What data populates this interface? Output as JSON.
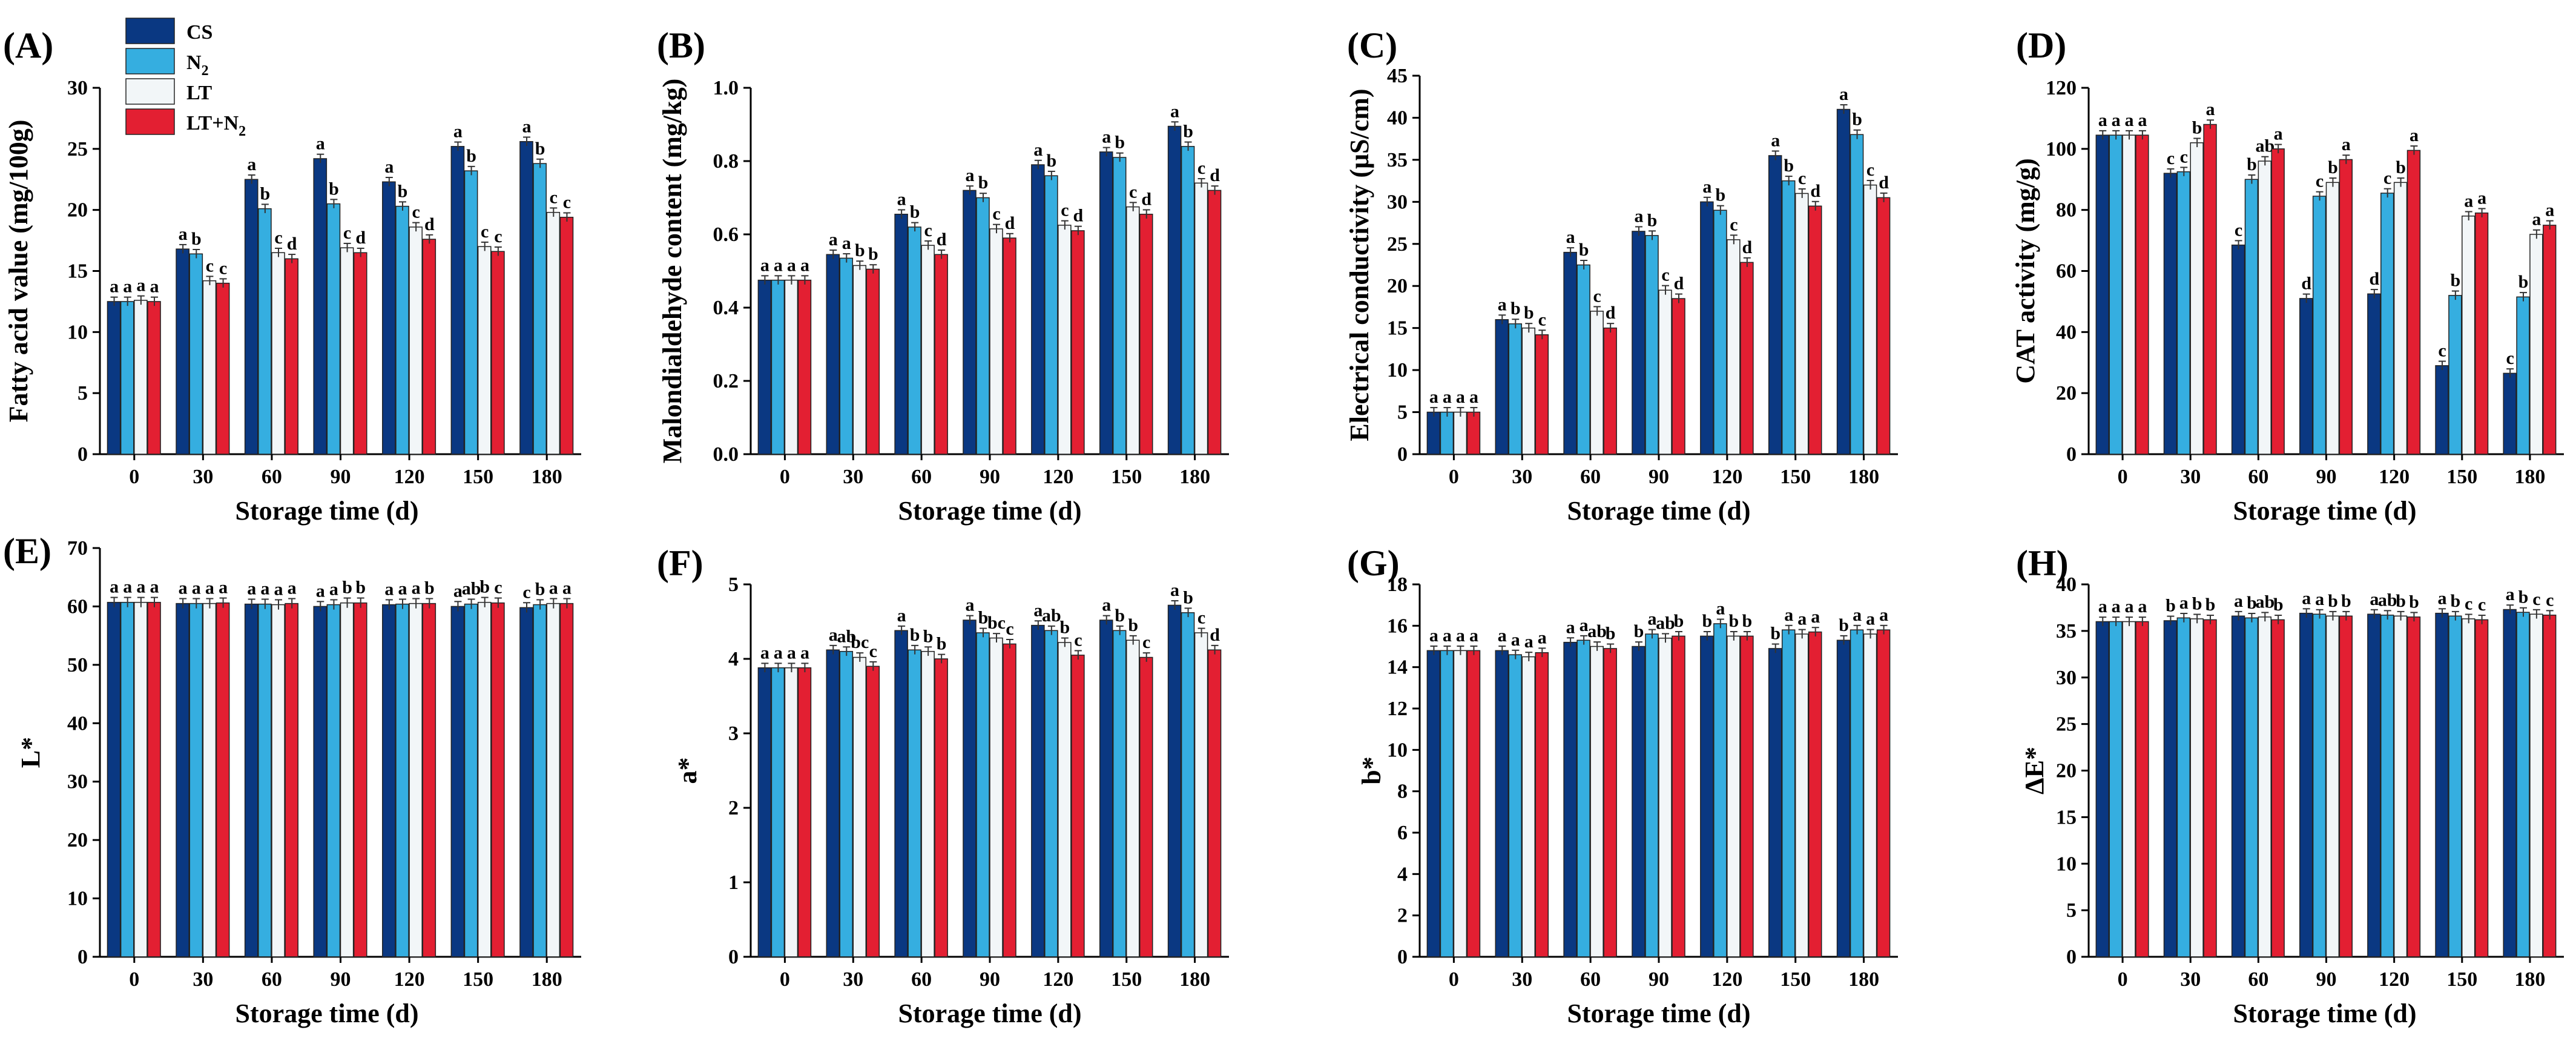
{
  "figure": {
    "series": [
      {
        "name": "CS",
        "color": "#0a3882"
      },
      {
        "name": "N2",
        "color": "#35aee0"
      },
      {
        "name": "LT",
        "color": "#f2f6f8"
      },
      {
        "name": "LT+N2",
        "color": "#e31f32"
      }
    ],
    "legend_labels": [
      "CS",
      "N",
      "LT",
      "LT+N"
    ],
    "legend_subscript": "2",
    "legend_placement": "top-left of panel A"
  },
  "chart_data": [
    {
      "type": "bar",
      "panel": "(A)",
      "title": "",
      "xlabel": "Storage time (d)",
      "ylabel": "Fatty acid value (mg/100g)",
      "categories": [
        "0",
        "30",
        "60",
        "90",
        "120",
        "150",
        "180"
      ],
      "ylim": [
        0,
        30
      ],
      "yticks": [
        "0",
        "5",
        "10",
        "15",
        "20",
        "25",
        "30"
      ],
      "series": [
        {
          "name": "CS",
          "values": [
            12.5,
            16.8,
            22.5,
            24.2,
            22.3,
            25.2,
            25.6
          ],
          "sig": [
            "a",
            "a",
            "a",
            "a",
            "a",
            "a",
            "a"
          ]
        },
        {
          "name": "N2",
          "values": [
            12.5,
            16.4,
            20.1,
            20.5,
            20.3,
            23.2,
            23.8
          ],
          "sig": [
            "a",
            "b",
            "b",
            "b",
            "b",
            "b",
            "b"
          ]
        },
        {
          "name": "LT",
          "values": [
            12.6,
            14.2,
            16.5,
            16.9,
            18.6,
            17.0,
            19.8
          ],
          "sig": [
            "a",
            "c",
            "c",
            "c",
            "c",
            "c",
            "c"
          ]
        },
        {
          "name": "LT+N2",
          "values": [
            12.5,
            14.0,
            16.0,
            16.5,
            17.6,
            16.6,
            19.4
          ],
          "sig": [
            "a",
            "c",
            "d",
            "d",
            "d",
            "c",
            "c"
          ]
        }
      ]
    },
    {
      "type": "bar",
      "panel": "(B)",
      "title": "",
      "xlabel": "Storage time (d)",
      "ylabel": "Malondialdehyde content (mg/kg)",
      "categories": [
        "0",
        "30",
        "60",
        "90",
        "120",
        "150",
        "180"
      ],
      "ylim": [
        0,
        1.0
      ],
      "yticks": [
        "0.0",
        "0.2",
        "0.4",
        "0.6",
        "0.8",
        "1.0"
      ],
      "series": [
        {
          "name": "CS",
          "values": [
            0.475,
            0.545,
            0.655,
            0.72,
            0.79,
            0.825,
            0.895
          ],
          "sig": [
            "a",
            "a",
            "a",
            "a",
            "a",
            "a",
            "a"
          ]
        },
        {
          "name": "N2",
          "values": [
            0.475,
            0.535,
            0.62,
            0.7,
            0.76,
            0.81,
            0.84
          ],
          "sig": [
            "a",
            "a",
            "b",
            "b",
            "b",
            "b",
            "b"
          ]
        },
        {
          "name": "LT",
          "values": [
            0.475,
            0.515,
            0.57,
            0.615,
            0.625,
            0.675,
            0.74
          ],
          "sig": [
            "a",
            "b",
            "c",
            "c",
            "c",
            "c",
            "c"
          ]
        },
        {
          "name": "LT+N2",
          "values": [
            0.475,
            0.505,
            0.545,
            0.59,
            0.61,
            0.655,
            0.72
          ],
          "sig": [
            "a",
            "b",
            "d",
            "d",
            "d",
            "d",
            "d"
          ]
        }
      ]
    },
    {
      "type": "bar",
      "panel": "(C)",
      "title": "",
      "xlabel": "Storage time (d)",
      "ylabel": "Electrical conductivity (μS/cm)",
      "categories": [
        "0",
        "30",
        "60",
        "90",
        "120",
        "150",
        "180"
      ],
      "ylim": [
        0,
        45
      ],
      "yticks": [
        "0",
        "5",
        "10",
        "15",
        "20",
        "25",
        "30",
        "35",
        "40",
        "45"
      ],
      "series": [
        {
          "name": "CS",
          "values": [
            5.0,
            16.0,
            24.0,
            26.5,
            30.0,
            35.5,
            41.0
          ],
          "sig": [
            "a",
            "a",
            "a",
            "a",
            "a",
            "a",
            "a"
          ]
        },
        {
          "name": "N2",
          "values": [
            5.0,
            15.5,
            22.5,
            26.0,
            29.0,
            32.5,
            38.0
          ],
          "sig": [
            "a",
            "b",
            "b",
            "b",
            "b",
            "b",
            "b"
          ]
        },
        {
          "name": "LT",
          "values": [
            5.0,
            15.0,
            17.0,
            19.5,
            25.5,
            31.0,
            32.0
          ],
          "sig": [
            "a",
            "b",
            "c",
            "c",
            "c",
            "c",
            "c"
          ]
        },
        {
          "name": "LT+N2",
          "values": [
            5.0,
            14.2,
            15.0,
            18.5,
            22.8,
            29.5,
            30.5
          ],
          "sig": [
            "a",
            "c",
            "d",
            "d",
            "d",
            "d",
            "d"
          ]
        }
      ]
    },
    {
      "type": "bar",
      "panel": "(D)",
      "title": "",
      "xlabel": "Storage time (d)",
      "ylabel": "CAT activity (mg/g)",
      "categories": [
        "0",
        "30",
        "60",
        "90",
        "120",
        "150",
        "180"
      ],
      "ylim": [
        0,
        120
      ],
      "yticks": [
        "0",
        "20",
        "40",
        "60",
        "80",
        "100",
        "120"
      ],
      "series": [
        {
          "name": "CS",
          "values": [
            104.5,
            92.0,
            68.5,
            51.0,
            52.5,
            29.0,
            26.5
          ],
          "sig": [
            "a",
            "c",
            "c",
            "d",
            "d",
            "c",
            "c"
          ]
        },
        {
          "name": "N2",
          "values": [
            104.5,
            92.5,
            90.0,
            84.5,
            85.5,
            52.0,
            51.5
          ],
          "sig": [
            "a",
            "c",
            "b",
            "c",
            "c",
            "b",
            "b"
          ]
        },
        {
          "name": "LT",
          "values": [
            104.5,
            102.0,
            96.0,
            89.0,
            89.0,
            78.0,
            72.0
          ],
          "sig": [
            "a",
            "b",
            "ab",
            "b",
            "b",
            "a",
            "a"
          ]
        },
        {
          "name": "LT+N2",
          "values": [
            104.5,
            108.0,
            100.0,
            96.5,
            99.5,
            79.0,
            75.0
          ],
          "sig": [
            "a",
            "a",
            "a",
            "a",
            "a",
            "a",
            "a"
          ]
        }
      ]
    },
    {
      "type": "bar",
      "panel": "(E)",
      "title": "",
      "xlabel": "Storage time (d)",
      "ylabel": "L*",
      "categories": [
        "0",
        "30",
        "60",
        "90",
        "120",
        "150",
        "180"
      ],
      "ylim": [
        0,
        70
      ],
      "yticks": [
        "0",
        "10",
        "20",
        "30",
        "40",
        "50",
        "60",
        "70"
      ],
      "series": [
        {
          "name": "CS",
          "values": [
            60.7,
            60.5,
            60.4,
            60.0,
            60.3,
            60.0,
            59.8
          ],
          "sig": [
            "a",
            "a",
            "a",
            "a",
            "a",
            "a",
            "c"
          ]
        },
        {
          "name": "N2",
          "values": [
            60.7,
            60.5,
            60.4,
            60.3,
            60.4,
            60.4,
            60.3
          ],
          "sig": [
            "a",
            "a",
            "a",
            "a",
            "a",
            "ab",
            "b"
          ]
        },
        {
          "name": "LT",
          "values": [
            60.7,
            60.5,
            60.3,
            60.6,
            60.5,
            60.7,
            60.5
          ],
          "sig": [
            "a",
            "a",
            "a",
            "b",
            "a",
            "b",
            "a"
          ]
        },
        {
          "name": "LT+N2",
          "values": [
            60.7,
            60.6,
            60.5,
            60.6,
            60.5,
            60.6,
            60.5
          ],
          "sig": [
            "a",
            "a",
            "a",
            "b",
            "b",
            "c",
            "a"
          ]
        }
      ]
    },
    {
      "type": "bar",
      "panel": "(F)",
      "title": "",
      "xlabel": "Storage time (d)",
      "ylabel": "a*",
      "categories": [
        "0",
        "30",
        "60",
        "90",
        "120",
        "150",
        "180"
      ],
      "ylim": [
        0,
        5
      ],
      "yticks": [
        "0",
        "1",
        "2",
        "3",
        "4",
        "5"
      ],
      "series": [
        {
          "name": "CS",
          "values": [
            3.88,
            4.12,
            4.38,
            4.52,
            4.45,
            4.52,
            4.72
          ],
          "sig": [
            "a",
            "a",
            "a",
            "a",
            "a",
            "a",
            "a"
          ]
        },
        {
          "name": "N2",
          "values": [
            3.88,
            4.1,
            4.12,
            4.35,
            4.38,
            4.38,
            4.62
          ],
          "sig": [
            "a",
            "ab",
            "b",
            "b",
            "ab",
            "b",
            "b"
          ]
        },
        {
          "name": "LT",
          "values": [
            3.88,
            4.02,
            4.1,
            4.28,
            4.22,
            4.25,
            4.35
          ],
          "sig": [
            "a",
            "bc",
            "b",
            "bc",
            "b",
            "b",
            "c"
          ]
        },
        {
          "name": "LT+N2",
          "values": [
            3.88,
            3.9,
            4.0,
            4.2,
            4.05,
            4.02,
            4.12
          ],
          "sig": [
            "a",
            "c",
            "b",
            "c",
            "c",
            "c",
            "d"
          ]
        }
      ]
    },
    {
      "type": "bar",
      "panel": "(G)",
      "title": "",
      "xlabel": "Storage time (d)",
      "ylabel": "b*",
      "categories": [
        "0",
        "30",
        "60",
        "90",
        "120",
        "150",
        "180"
      ],
      "ylim": [
        0,
        18
      ],
      "yticks": [
        "0",
        "2",
        "4",
        "6",
        "8",
        "10",
        "12",
        "14",
        "16",
        "18"
      ],
      "series": [
        {
          "name": "CS",
          "values": [
            14.8,
            14.8,
            15.2,
            15.0,
            15.5,
            14.9,
            15.3
          ],
          "sig": [
            "a",
            "a",
            "a",
            "b",
            "b",
            "b",
            "b"
          ]
        },
        {
          "name": "N2",
          "values": [
            14.8,
            14.6,
            15.3,
            15.6,
            16.1,
            15.8,
            15.8
          ],
          "sig": [
            "a",
            "a",
            "a",
            "a",
            "a",
            "a",
            "a"
          ]
        },
        {
          "name": "LT",
          "values": [
            14.8,
            14.5,
            15.0,
            15.4,
            15.5,
            15.6,
            15.6
          ],
          "sig": [
            "a",
            "a",
            "ab",
            "ab",
            "b",
            "a",
            "a"
          ]
        },
        {
          "name": "LT+N2",
          "values": [
            14.8,
            14.7,
            14.9,
            15.5,
            15.5,
            15.7,
            15.8
          ],
          "sig": [
            "a",
            "a",
            "b",
            "b",
            "b",
            "a",
            "a"
          ]
        }
      ]
    },
    {
      "type": "bar",
      "panel": "(H)",
      "title": "",
      "xlabel": "Storage time (d)",
      "ylabel": "ΔE*",
      "categories": [
        "0",
        "30",
        "60",
        "90",
        "120",
        "150",
        "180"
      ],
      "ylim": [
        0,
        40
      ],
      "yticks": [
        "0",
        "5",
        "10",
        "15",
        "20",
        "25",
        "30",
        "35",
        "40"
      ],
      "series": [
        {
          "name": "CS",
          "values": [
            36.0,
            36.1,
            36.6,
            36.9,
            36.8,
            36.9,
            37.3
          ],
          "sig": [
            "a",
            "b",
            "a",
            "a",
            "a",
            "a",
            "a"
          ]
        },
        {
          "name": "N2",
          "values": [
            36.0,
            36.4,
            36.4,
            36.8,
            36.7,
            36.6,
            37.0
          ],
          "sig": [
            "a",
            "a",
            "b",
            "a",
            "ab",
            "b",
            "b"
          ]
        },
        {
          "name": "LT",
          "values": [
            36.0,
            36.3,
            36.5,
            36.6,
            36.6,
            36.3,
            36.8
          ],
          "sig": [
            "a",
            "b",
            "ab",
            "b",
            "b",
            "c",
            "c"
          ]
        },
        {
          "name": "LT+N2",
          "values": [
            36.0,
            36.2,
            36.2,
            36.6,
            36.5,
            36.2,
            36.7
          ],
          "sig": [
            "a",
            "b",
            "b",
            "b",
            "b",
            "c",
            "c"
          ]
        }
      ]
    }
  ]
}
